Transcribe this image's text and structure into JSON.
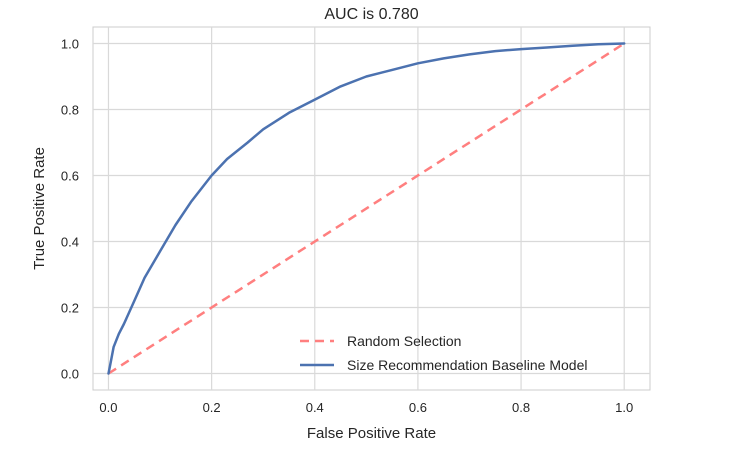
{
  "chart_data": {
    "type": "line",
    "title": "AUC is 0.780",
    "xlabel": "False Positive Rate",
    "ylabel": "True Positive Rate",
    "xlim": [
      -0.03,
      1.05
    ],
    "ylim": [
      -0.05,
      1.05
    ],
    "xticks": [
      0.0,
      0.2,
      0.4,
      0.6,
      0.8,
      1.0
    ],
    "yticks": [
      0.0,
      0.2,
      0.4,
      0.6,
      0.8,
      1.0
    ],
    "xtick_labels": [
      "0.0",
      "0.2",
      "0.4",
      "0.6",
      "0.8",
      "1.0"
    ],
    "ytick_labels": [
      "0.0",
      "0.2",
      "0.4",
      "0.6",
      "0.8",
      "1.0"
    ],
    "grid": true,
    "legend_placement": "lower-right",
    "series": [
      {
        "name": "Random Selection",
        "color": "#ff7f7f",
        "style": "dashed",
        "x": [
          0.0,
          1.0
        ],
        "y": [
          0.0,
          1.0
        ]
      },
      {
        "name": "Size Recommendation Baseline Model",
        "color": "#4c72b0",
        "style": "solid",
        "x": [
          0.0,
          0.005,
          0.01,
          0.02,
          0.03,
          0.05,
          0.07,
          0.1,
          0.13,
          0.16,
          0.2,
          0.23,
          0.27,
          0.3,
          0.35,
          0.4,
          0.45,
          0.5,
          0.55,
          0.6,
          0.65,
          0.7,
          0.75,
          0.8,
          0.85,
          0.9,
          0.95,
          1.0
        ],
        "y": [
          0.0,
          0.04,
          0.08,
          0.12,
          0.15,
          0.22,
          0.29,
          0.37,
          0.45,
          0.52,
          0.6,
          0.65,
          0.7,
          0.74,
          0.79,
          0.83,
          0.87,
          0.9,
          0.92,
          0.94,
          0.955,
          0.967,
          0.977,
          0.983,
          0.988,
          0.993,
          0.998,
          1.0
        ]
      }
    ]
  }
}
